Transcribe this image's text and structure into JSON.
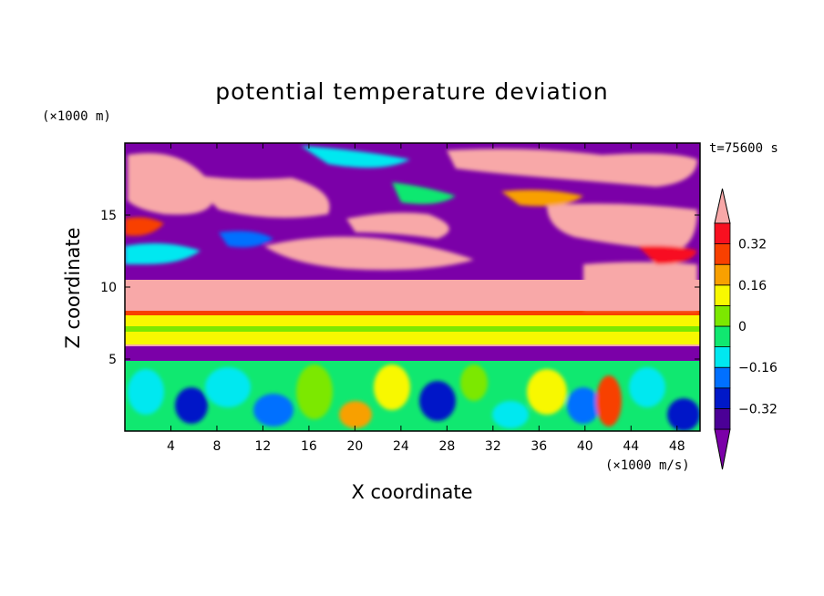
{
  "chart_data": {
    "type": "heatmap",
    "title": "potential temperature deviation",
    "xlabel": "X coordinate",
    "ylabel": "Z coordinate",
    "x_unit": "(×1000 m/s)",
    "y_unit": "(×1000 m)",
    "time_label": "t=75600 s",
    "xlim": [
      0,
      50
    ],
    "ylim": [
      0,
      20
    ],
    "x_ticks": [
      4,
      8,
      12,
      16,
      20,
      24,
      28,
      32,
      36,
      40,
      44,
      48
    ],
    "y_ticks": [
      5,
      10,
      15
    ],
    "colorbar": {
      "levels": [
        -0.4,
        -0.32,
        -0.24,
        -0.16,
        -0.08,
        0,
        0.08,
        0.16,
        0.24,
        0.32,
        0.4
      ],
      "labels": [
        "0.32",
        "0.16",
        "0",
        "-0.16",
        "-0.32"
      ],
      "colors_low_to_high": [
        "#7B00A8",
        "#4B0096",
        "#0018C8",
        "#0070FF",
        "#00E8F0",
        "#10E870",
        "#7CE800",
        "#F8F800",
        "#F8A000",
        "#F84000",
        "#F81020",
        "#F8A8A8"
      ],
      "extend": "both"
    },
    "layers": [
      {
        "z_range": [
          0,
          5
        ],
        "description_values": "mixed, mostly -0.16 to 0.08",
        "dominant_color": "#10E870"
      },
      {
        "z_range": [
          5,
          6
        ],
        "dominant_value": "<-0.4",
        "color": "#7B00A8"
      },
      {
        "z_range": [
          6,
          8
        ],
        "dominant_value": "0.08 to 0.16",
        "color": "#F8F800"
      },
      {
        "z_range": [
          8,
          10
        ],
        "dominant_value": ">0.4",
        "color": "#F8A8A8"
      },
      {
        "z_range": [
          10,
          20
        ],
        "dominant_value": "mixed extremes",
        "color": "#7B00A8"
      }
    ]
  }
}
